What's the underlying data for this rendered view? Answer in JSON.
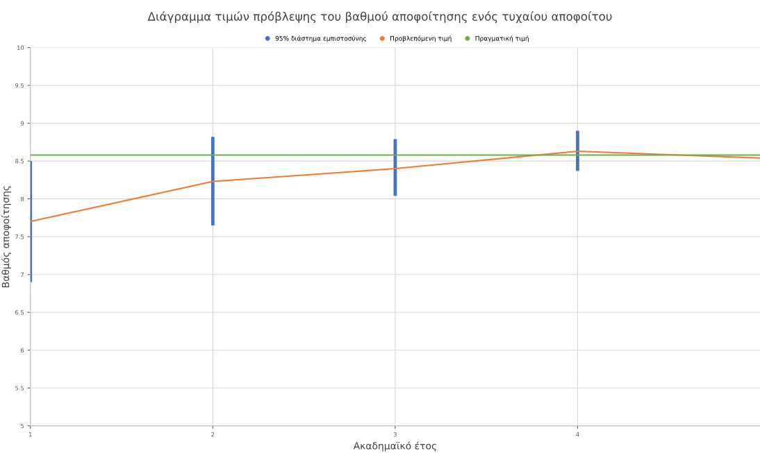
{
  "chart_data": {
    "type": "line",
    "title": "Διάγραμμα τιμών πρόβλεψης του βαθμού αποφοίτησης ενός τυχαίου αποφοίτου",
    "xlabel": "Ακαδημαϊκό έτος",
    "ylabel": "Βαθμός αποφοίτησης",
    "series": [
      {
        "name": "95% διάστημα εμπιστοσύνης",
        "type": "bar",
        "color": "#4472c4",
        "x": [
          1,
          2,
          3,
          4
        ],
        "base": [
          6.9,
          7.65,
          8.04,
          8.37
        ],
        "values": [
          1.6,
          1.17,
          0.75,
          0.53
        ]
      },
      {
        "name": "Προβλεπόμενη τιμή",
        "color": "#ed7d31",
        "x": [
          1,
          2,
          3,
          4,
          5
        ],
        "values": [
          7.7,
          8.23,
          8.4,
          8.63,
          8.54
        ]
      },
      {
        "name": "Πραγματική τιμή",
        "color": "#70ad47",
        "x": [
          1,
          5
        ],
        "values": [
          8.58,
          8.58
        ]
      }
    ],
    "xlim": [
      1,
      5
    ],
    "xticks": [
      1,
      2,
      3,
      4
    ],
    "ylim": [
      5,
      10
    ],
    "yticks": [
      5,
      5.5,
      6,
      6.5,
      7,
      7.5,
      8,
      8.5,
      9,
      9.5,
      10
    ],
    "grid": true,
    "legend": "top",
    "marker": "none",
    "line_style": "solid"
  }
}
